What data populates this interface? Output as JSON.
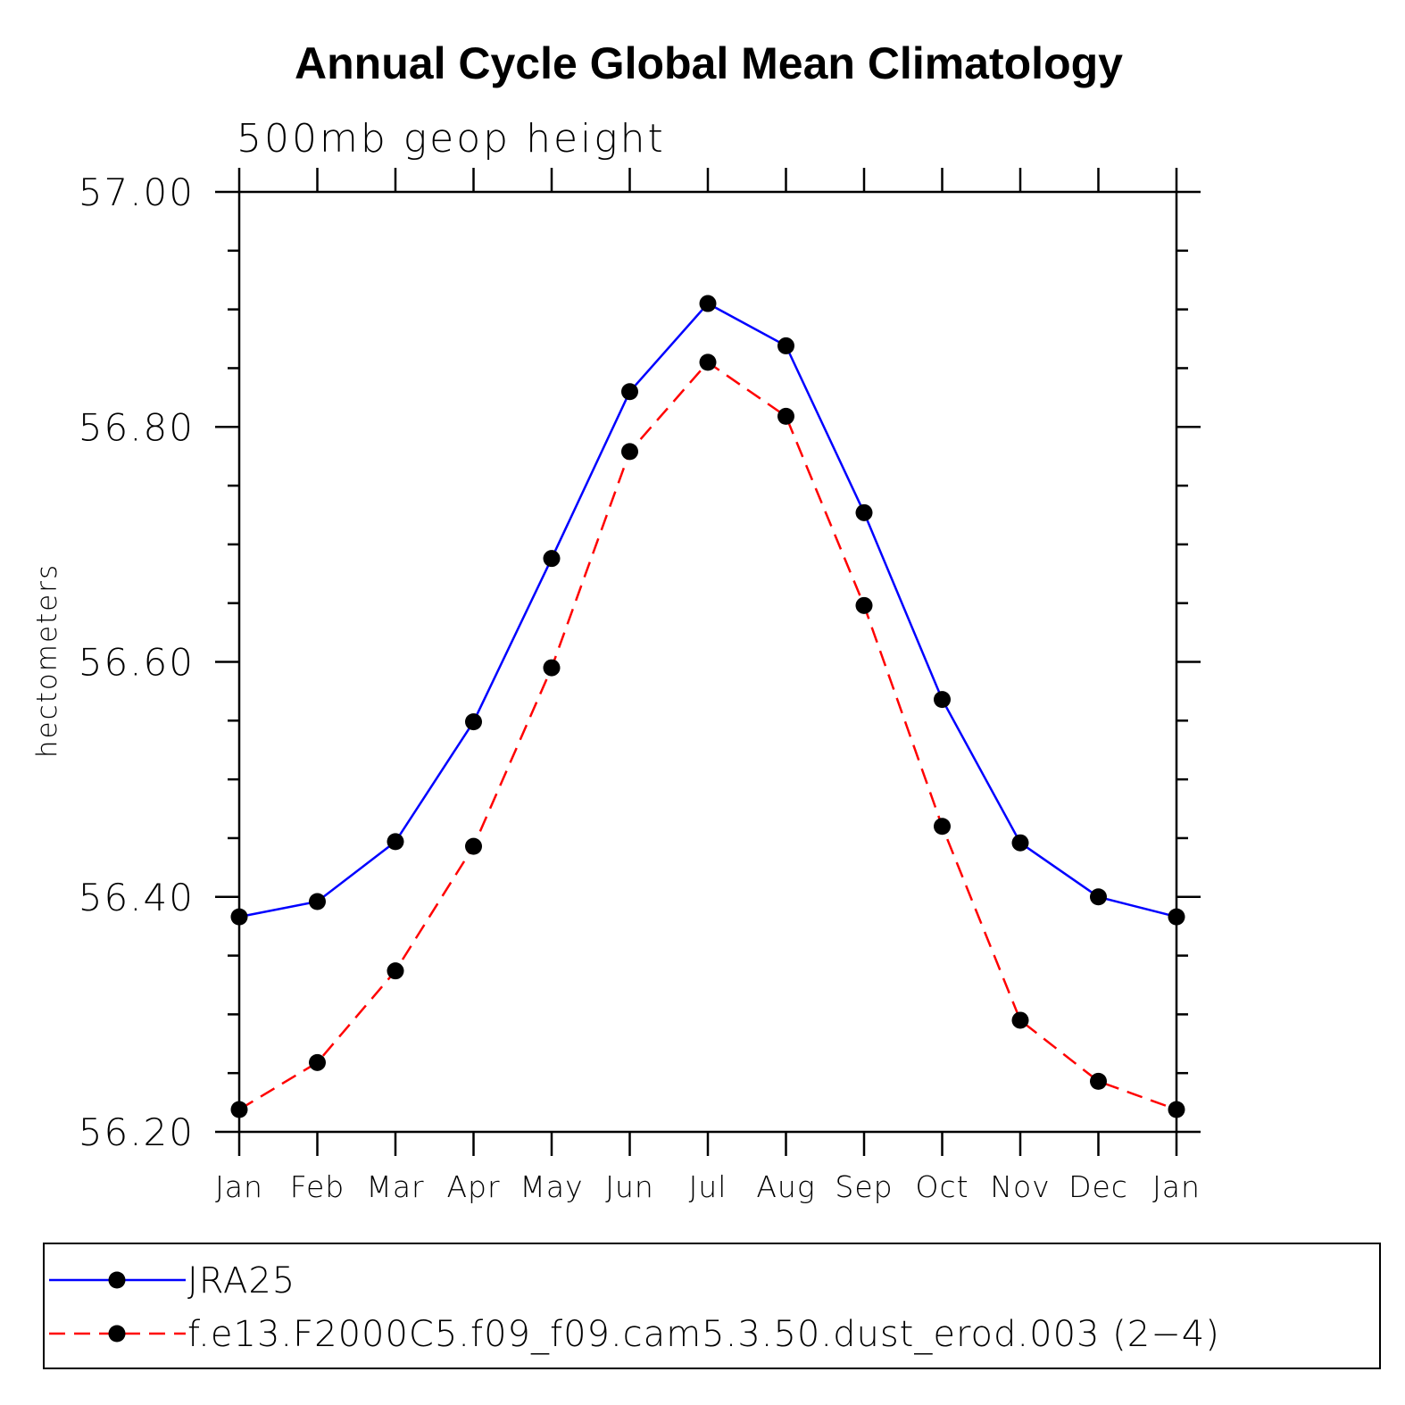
{
  "chart_data": {
    "type": "line",
    "title": "Annual Cycle Global Mean Climatology",
    "subtitle": "500mb geop height",
    "xlabel": "",
    "ylabel": "hectometers",
    "categories": [
      "Jan",
      "Feb",
      "Mar",
      "Apr",
      "May",
      "Jun",
      "Jul",
      "Aug",
      "Sep",
      "Oct",
      "Nov",
      "Dec",
      "Jan"
    ],
    "ylim": [
      56.2,
      57.0
    ],
    "yticks": [
      "56.20",
      "56.40",
      "56.60",
      "56.80",
      "57.00"
    ],
    "grid": false,
    "legend_position": "bottom",
    "series": [
      {
        "name": "JRA25",
        "color": "#0000ff",
        "line_style": "solid",
        "marker": "filled-circle",
        "values": [
          56.383,
          56.396,
          56.447,
          56.549,
          56.688,
          56.83,
          56.905,
          56.869,
          56.727,
          56.568,
          56.446,
          56.4,
          56.383
        ]
      },
      {
        "name": "f.e13.F2000C5.f09_f09.cam5.3.50.dust_erod.003 (2−4)",
        "color": "#ff0000",
        "line_style": "dashed",
        "marker": "filled-circle",
        "values": [
          56.219,
          56.259,
          56.337,
          56.443,
          56.595,
          56.779,
          56.855,
          56.809,
          56.648,
          56.46,
          56.295,
          56.243,
          56.219
        ]
      }
    ]
  }
}
